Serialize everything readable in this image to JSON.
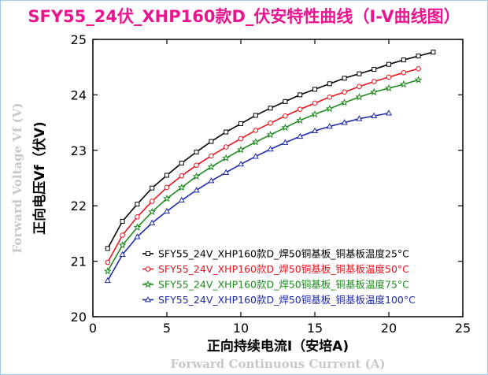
{
  "chart_data": {
    "type": "line",
    "title": "SFY55_24伏_XHP160款D_伏安特性曲线（I-V曲线图）",
    "xlabel_cn": "正向持续电流I（安培A)",
    "xlabel_en": "Forward Continuous Current (A)",
    "ylabel_cn": "正向电压Vf（伏V)",
    "ylabel_en": "Forward Voltage Vf (V)",
    "xlim": [
      0,
      25
    ],
    "ylim": [
      20,
      25
    ],
    "xticks": [
      "0",
      "5",
      "10",
      "15",
      "20",
      "25"
    ],
    "yticks": [
      "20",
      "21",
      "22",
      "23",
      "24",
      "25"
    ],
    "grid": false,
    "legend_position": "bottom-right",
    "series": [
      {
        "name": "SFY55_24V_XHP160款D_焊50铜基板_铜基板温度25°C",
        "color": "#000000",
        "marker": "square",
        "x": [
          1,
          2,
          3,
          4,
          5,
          6,
          7,
          8,
          9,
          10,
          11,
          12,
          13,
          14,
          15,
          16,
          17,
          18,
          19,
          20,
          21,
          22,
          23
        ],
        "y": [
          21.23,
          21.72,
          22.03,
          22.32,
          22.55,
          22.77,
          22.97,
          23.16,
          23.33,
          23.48,
          23.63,
          23.76,
          23.88,
          24.0,
          24.1,
          24.2,
          24.3,
          24.38,
          24.46,
          24.55,
          24.63,
          24.7,
          24.77
        ]
      },
      {
        "name": "SFY55_24V_XHP160款D_焊50铜基板_铜基板温度50°C",
        "color": "#e8141e",
        "marker": "circle",
        "x": [
          1,
          2,
          3,
          4,
          5,
          6,
          7,
          8,
          9,
          10,
          11,
          12,
          13,
          14,
          15,
          16,
          17,
          18,
          19,
          20,
          21,
          22
        ],
        "y": [
          20.98,
          21.47,
          21.8,
          22.08,
          22.33,
          22.54,
          22.73,
          22.9,
          23.06,
          23.21,
          23.36,
          23.49,
          23.62,
          23.74,
          23.85,
          23.96,
          24.05,
          24.15,
          24.24,
          24.32,
          24.4,
          24.47
        ]
      },
      {
        "name": "SFY55_24V_XHP160款D_焊50铜基板_铜基板温度75°C",
        "color": "#1e8a1e",
        "marker": "star",
        "x": [
          1,
          2,
          3,
          4,
          5,
          6,
          7,
          8,
          9,
          10,
          11,
          12,
          13,
          14,
          15,
          16,
          17,
          18,
          19,
          20,
          21,
          22
        ],
        "y": [
          20.82,
          21.29,
          21.61,
          21.89,
          22.13,
          22.33,
          22.53,
          22.7,
          22.86,
          23.01,
          23.15,
          23.28,
          23.41,
          23.54,
          23.65,
          23.75,
          23.86,
          23.96,
          24.05,
          24.12,
          24.19,
          24.27
        ]
      },
      {
        "name": "SFY55_24V_XHP160款D_焊50铜基板_铜基板温度100°C",
        "color": "#1e2aa8",
        "marker": "triangle",
        "x": [
          1,
          2,
          3,
          4,
          5,
          6,
          7,
          8,
          9,
          10,
          11,
          12,
          13,
          14,
          15,
          16,
          17,
          18,
          19,
          20
        ],
        "y": [
          20.65,
          21.12,
          21.44,
          21.69,
          21.9,
          22.1,
          22.28,
          22.45,
          22.6,
          22.75,
          22.89,
          23.02,
          23.14,
          23.25,
          23.35,
          23.43,
          23.5,
          23.57,
          23.62,
          23.67
        ]
      }
    ]
  }
}
